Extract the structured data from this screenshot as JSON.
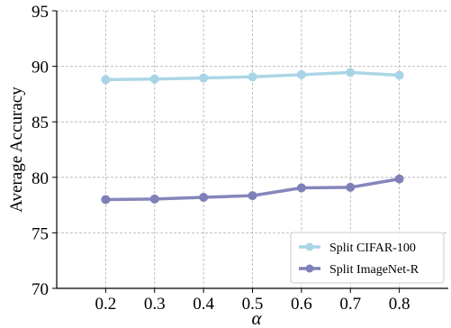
{
  "chart_data": {
    "type": "line",
    "x": [
      0.2,
      0.3,
      0.4,
      0.5,
      0.6,
      0.7,
      0.8
    ],
    "x_tick_labels": [
      "0.2",
      "0.3",
      "0.4",
      "0.5",
      "0.6",
      "0.7",
      "0.8"
    ],
    "xlim": [
      0.1,
      0.9
    ],
    "ylim": [
      70,
      95
    ],
    "y_ticks": [
      70,
      75,
      80,
      85,
      90,
      95
    ],
    "y_tick_labels": [
      "70",
      "75",
      "80",
      "85",
      "90",
      "95"
    ],
    "xlabel": "α",
    "ylabel": "Average Accuracy",
    "grid": true,
    "legend_position": "bottom-right",
    "series": [
      {
        "name": "Split CIFAR-100",
        "color": "#a8d4e6",
        "values": [
          88.8,
          88.85,
          88.95,
          89.05,
          89.25,
          89.45,
          89.2
        ]
      },
      {
        "name": "Split ImageNet-R",
        "color": "#7f80b8",
        "values": [
          78.0,
          78.05,
          78.2,
          78.35,
          79.05,
          79.1,
          79.85
        ]
      }
    ]
  }
}
